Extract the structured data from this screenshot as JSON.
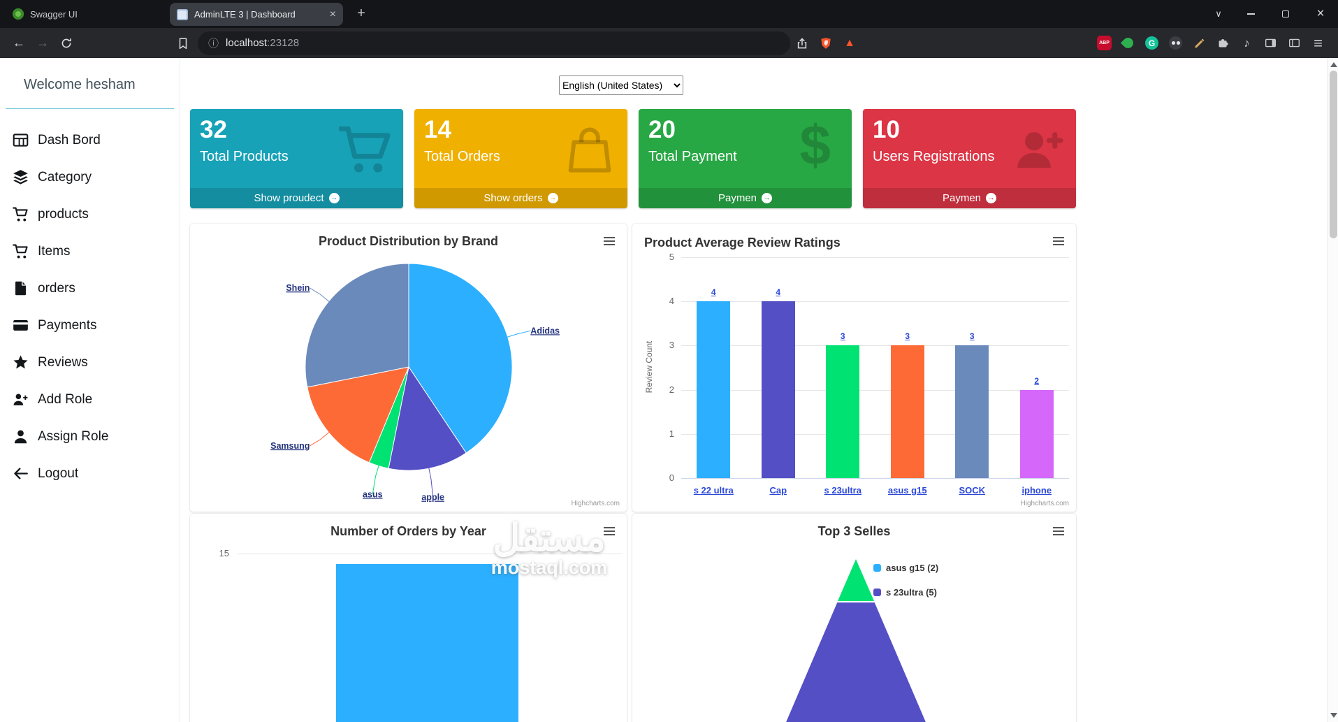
{
  "browser": {
    "tabs": [
      {
        "title": "Swagger UI"
      },
      {
        "title": "AdminLTE 3 | Dashboard"
      }
    ],
    "url": {
      "host": "localhost",
      "port": ":23128"
    },
    "glyphs": {
      "back": "←",
      "forward": "→",
      "plus": "+",
      "tab_close": "×",
      "chevron": "∨",
      "minimize": "—",
      "close": "×",
      "menu": "≡",
      "music": "♪",
      "info": "ⓘ",
      "rewards": "▲"
    },
    "extensions": {
      "abp": "ABP",
      "grammarly": "G"
    }
  },
  "sidebar": {
    "welcome": "Welcome hesham",
    "items": [
      {
        "label": "Dash Bord",
        "icon": "grid"
      },
      {
        "label": "Category",
        "icon": "layers"
      },
      {
        "label": "products",
        "icon": "cart"
      },
      {
        "label": "Items",
        "icon": "cart"
      },
      {
        "label": "orders",
        "icon": "file"
      },
      {
        "label": "Payments",
        "icon": "card"
      },
      {
        "label": "Reviews",
        "icon": "star"
      },
      {
        "label": "Add Role",
        "icon": "user-plus"
      },
      {
        "label": "Assign Role",
        "icon": "user"
      },
      {
        "label": "Logout",
        "icon": "arrow-left"
      }
    ]
  },
  "main": {
    "language_select": "English (United States)",
    "info_boxes": [
      {
        "value": "32",
        "label": "Total Products",
        "footer": "Show proudect",
        "color": "#17a2b8",
        "icon": "cart"
      },
      {
        "value": "14",
        "label": "Total Orders",
        "footer": "Show orders",
        "color": "#f0b000",
        "icon": "shopping-bag"
      },
      {
        "value": "20",
        "label": "Total Payment",
        "footer": "Paymen",
        "color": "#28a745",
        "icon": "dollar"
      },
      {
        "value": "10",
        "label": "Users Registrations",
        "footer": "Paymen",
        "color": "#dc3545",
        "icon": "user-plus"
      }
    ],
    "watermark": {
      "line1": "مستقل",
      "line2": "mostaql.com"
    }
  },
  "credits": "Highcharts.com",
  "chart_data": [
    {
      "type": "pie",
      "title": "Product Distribution by Brand",
      "points": [
        {
          "name": "Adidas",
          "value": 13,
          "color": "#2caffe"
        },
        {
          "name": "apple",
          "value": 4,
          "color": "#544fc5"
        },
        {
          "name": "asus",
          "value": 1,
          "color": "#00e272"
        },
        {
          "name": "Samsung",
          "value": 5,
          "color": "#fe6a35"
        },
        {
          "name": "Shein",
          "value": 9,
          "color": "#6b8abc"
        }
      ],
      "label_color": "#24337e"
    },
    {
      "type": "column",
      "title": "Product Average Review Ratings",
      "ylabel": "Review Count",
      "ylim": [
        0,
        5
      ],
      "categories": [
        "s 22 ultra",
        "Cap",
        "s 23ultra",
        "asus g15",
        "SOCK",
        "iphone"
      ],
      "values": [
        4,
        4,
        3,
        3,
        3,
        2
      ],
      "colors": [
        "#2caffe",
        "#544fc5",
        "#00e272",
        "#fe6a35",
        "#6b8abc",
        "#d568fb"
      ],
      "label_color": "#2b48d9"
    },
    {
      "type": "bar",
      "title": "Number of Orders by Year",
      "yticks_visible": [
        15
      ],
      "categories": [
        ""
      ],
      "values": [
        14
      ],
      "color": "#2caffe"
    },
    {
      "type": "pyramid",
      "title": "Top 3 Selles",
      "legend": [
        {
          "label": "asus g15 (2)",
          "color": "#2caffe"
        },
        {
          "label": "s 23ultra (5)",
          "color": "#544fc5"
        }
      ],
      "band_colors": [
        "#00e272",
        "#544fc5"
      ]
    }
  ]
}
